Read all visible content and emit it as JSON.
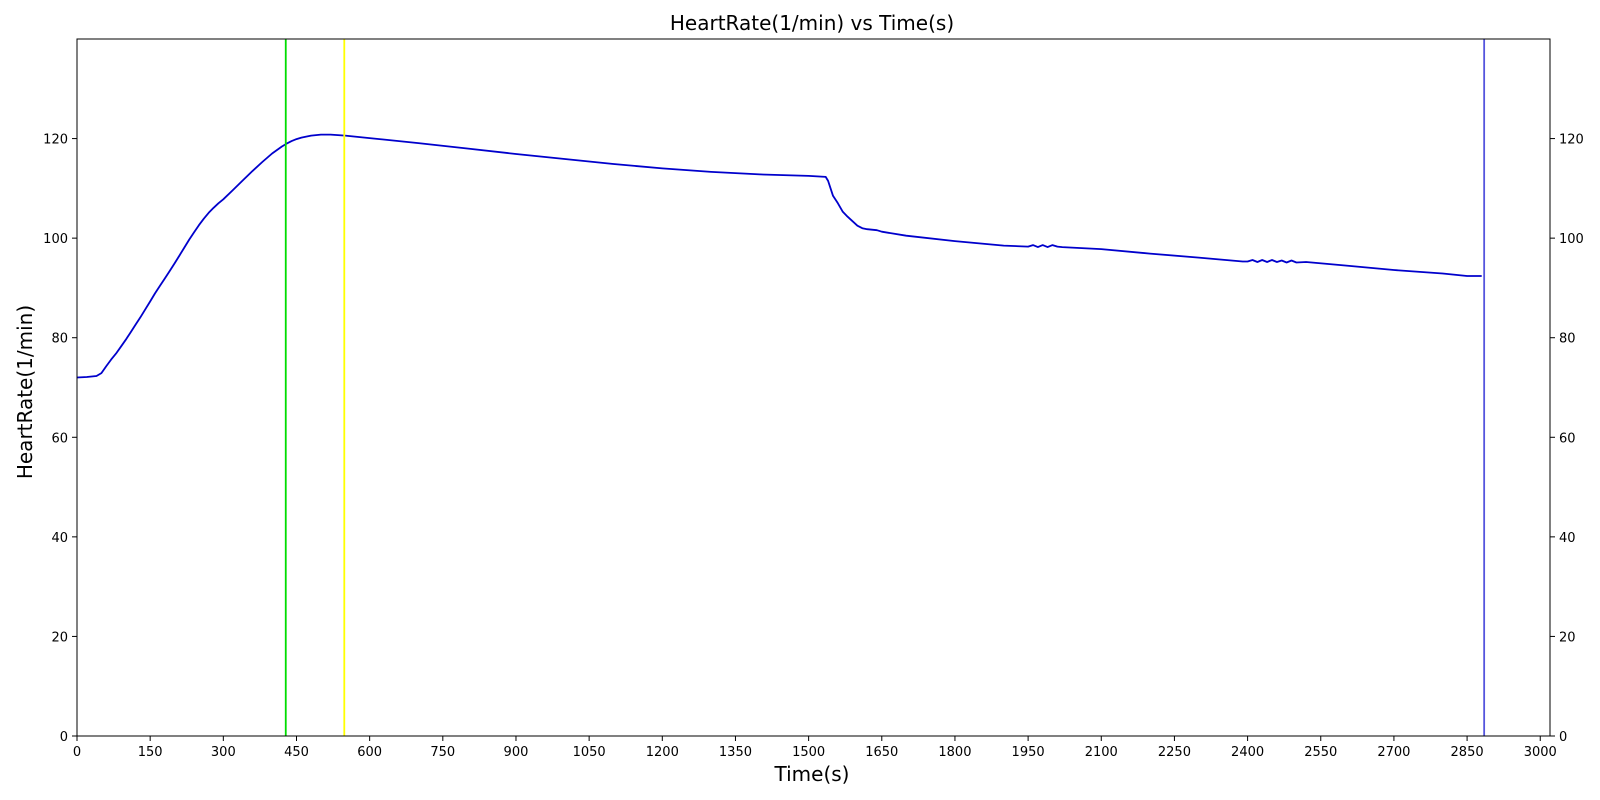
{
  "chart_data": {
    "type": "line",
    "title": "HeartRate(1/min) vs Time(s)",
    "xlabel": "Time(s)",
    "ylabel": "HeartRate(1/min)",
    "xlim": [
      0,
      3020
    ],
    "ylim": [
      0,
      140
    ],
    "x_ticks": [
      0,
      150,
      300,
      450,
      600,
      750,
      900,
      1050,
      1200,
      1350,
      1500,
      1650,
      1800,
      1950,
      2100,
      2250,
      2400,
      2550,
      2700,
      2850,
      3000
    ],
    "y_ticks": [
      0,
      20,
      40,
      60,
      80,
      100,
      120
    ],
    "grid": false,
    "secondary_y_axis": true,
    "series": [
      {
        "color": "#0000cc",
        "x": [
          0,
          20,
          40,
          50,
          60,
          70,
          80,
          90,
          100,
          110,
          120,
          130,
          140,
          150,
          160,
          170,
          180,
          190,
          200,
          210,
          220,
          230,
          240,
          250,
          260,
          270,
          280,
          290,
          300,
          320,
          340,
          360,
          380,
          400,
          420,
          430,
          440,
          450,
          460,
          470,
          480,
          490,
          500,
          520,
          550,
          600,
          700,
          800,
          900,
          1000,
          1100,
          1200,
          1300,
          1400,
          1500,
          1535,
          1540,
          1550,
          1560,
          1570,
          1580,
          1590,
          1600,
          1610,
          1620,
          1630,
          1640,
          1650,
          1700,
          1800,
          1900,
          1950,
          1960,
          1970,
          1980,
          1990,
          2000,
          2010,
          2020,
          2100,
          2200,
          2300,
          2390,
          2400,
          2410,
          2420,
          2430,
          2440,
          2450,
          2460,
          2470,
          2480,
          2490,
          2500,
          2520,
          2600,
          2700,
          2800,
          2850,
          2880
        ],
        "values": [
          72.0,
          72.1,
          72.3,
          72.9,
          74.3,
          75.6,
          76.8,
          78.2,
          79.6,
          81.1,
          82.6,
          84.1,
          85.7,
          87.3,
          88.9,
          90.4,
          91.9,
          93.4,
          94.9,
          96.5,
          98.1,
          99.7,
          101.2,
          102.6,
          103.9,
          105.1,
          106.1,
          107.0,
          107.8,
          109.7,
          111.6,
          113.5,
          115.3,
          117.0,
          118.4,
          119.0,
          119.5,
          119.9,
          120.2,
          120.4,
          120.6,
          120.7,
          120.8,
          120.8,
          120.6,
          120.1,
          119.1,
          118.0,
          116.9,
          115.9,
          114.9,
          114.0,
          113.3,
          112.8,
          112.5,
          112.3,
          111.5,
          108.5,
          107.0,
          105.3,
          104.3,
          103.4,
          102.5,
          102.0,
          101.8,
          101.7,
          101.6,
          101.3,
          100.5,
          99.4,
          98.5,
          98.3,
          98.6,
          98.2,
          98.6,
          98.2,
          98.6,
          98.3,
          98.2,
          97.8,
          96.9,
          96.1,
          95.3,
          95.3,
          95.6,
          95.2,
          95.6,
          95.2,
          95.6,
          95.2,
          95.5,
          95.1,
          95.5,
          95.1,
          95.2,
          94.5,
          93.6,
          92.9,
          92.4,
          92.4
        ]
      }
    ],
    "vertical_lines": [
      {
        "x": 428,
        "color": "#00dd00"
      },
      {
        "x": 548,
        "color": "#ffff00"
      },
      {
        "x": 2885,
        "color": "#5555dd"
      }
    ]
  }
}
